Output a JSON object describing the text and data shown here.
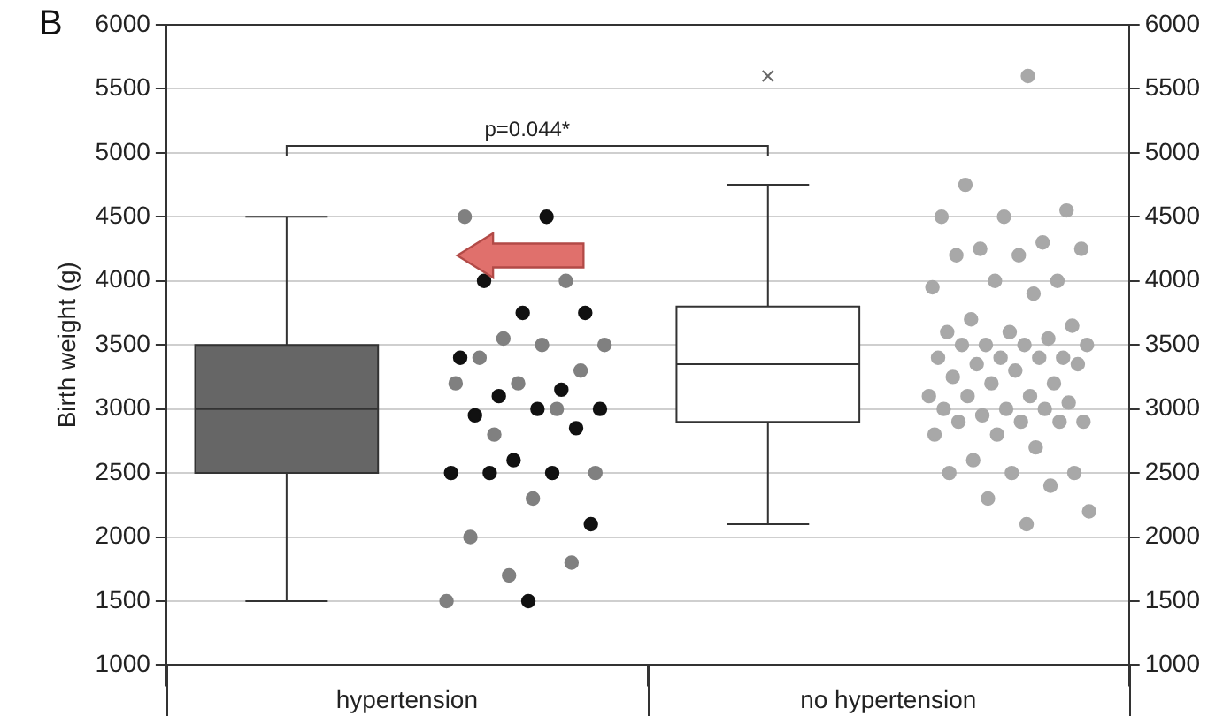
{
  "chart_data": {
    "type": "box",
    "title": "B",
    "ylabel": "Birth weight (g)",
    "categories": [
      "hypertension",
      "no hypertension"
    ],
    "boxes": [
      {
        "low": 1500,
        "q1": 2500,
        "median": 3000,
        "q3": 3500,
        "high": 4500
      },
      {
        "low": 2100,
        "q1": 2900,
        "median": 3350,
        "q3": 3800,
        "high": 4750,
        "outliers": [
          5600
        ]
      }
    ],
    "colors": [
      "#666666",
      "#ffffff"
    ],
    "series": [
      {
        "type": "scatter",
        "color": "#111111",
        "x": [
          "hypertension",
          "hypertension",
          "hypertension",
          "hypertension",
          "hypertension",
          "hypertension",
          "hypertension",
          "hypertension",
          "hypertension",
          "hypertension",
          "hypertension",
          "hypertension",
          "hypertension",
          "hypertension",
          "hypertension",
          "hypertension",
          "hypertension"
        ],
        "values": [
          4500,
          4000,
          3750,
          3750,
          3400,
          3150,
          3100,
          3000,
          3000,
          2950,
          2850,
          2600,
          2500,
          2500,
          2500,
          2100,
          1500
        ]
      },
      {
        "type": "scatter",
        "color": "#808080",
        "x": [
          "hypertension",
          "hypertension",
          "hypertension",
          "hypertension",
          "hypertension",
          "hypertension",
          "hypertension",
          "hypertension",
          "hypertension",
          "hypertension",
          "hypertension",
          "hypertension",
          "hypertension",
          "hypertension",
          "hypertension",
          "hypertension",
          "hypertension"
        ],
        "values": [
          4500,
          4000,
          3550,
          3500,
          3500,
          3400,
          3300,
          3200,
          3200,
          3000,
          2800,
          2500,
          2300,
          2000,
          1800,
          1700,
          1500
        ]
      },
      {
        "type": "scatter",
        "color": "#a8a8a8",
        "x": [
          "no hypertension",
          "no hypertension",
          "no hypertension",
          "no hypertension",
          "no hypertension",
          "no hypertension",
          "no hypertension",
          "no hypertension",
          "no hypertension",
          "no hypertension",
          "no hypertension",
          "no hypertension",
          "no hypertension",
          "no hypertension",
          "no hypertension",
          "no hypertension",
          "no hypertension",
          "no hypertension",
          "no hypertension",
          "no hypertension",
          "no hypertension",
          "no hypertension",
          "no hypertension",
          "no hypertension",
          "no hypertension",
          "no hypertension",
          "no hypertension",
          "no hypertension",
          "no hypertension",
          "no hypertension",
          "no hypertension",
          "no hypertension",
          "no hypertension",
          "no hypertension",
          "no hypertension",
          "no hypertension",
          "no hypertension",
          "no hypertension",
          "no hypertension",
          "no hypertension",
          "no hypertension",
          "no hypertension",
          "no hypertension",
          "no hypertension",
          "no hypertension",
          "no hypertension",
          "no hypertension",
          "no hypertension",
          "no hypertension",
          "no hypertension",
          "no hypertension",
          "no hypertension",
          "no hypertension",
          "no hypertension",
          "no hypertension",
          "no hypertension"
        ],
        "values": [
          5600,
          4750,
          4550,
          4500,
          4500,
          4300,
          4250,
          4250,
          4200,
          4200,
          4000,
          4000,
          3950,
          3900,
          3700,
          3650,
          3600,
          3600,
          3550,
          3500,
          3500,
          3500,
          3500,
          3400,
          3400,
          3400,
          3400,
          3350,
          3350,
          3300,
          3250,
          3200,
          3200,
          3100,
          3100,
          3100,
          3050,
          3000,
          3000,
          3000,
          2950,
          2900,
          2900,
          2900,
          2900,
          2800,
          2800,
          2700,
          2600,
          2500,
          2500,
          2500,
          2400,
          2300,
          2200,
          2100
        ]
      }
    ],
    "ylim": [
      1000,
      6000
    ],
    "yticks": [
      1000,
      1500,
      2000,
      2500,
      3000,
      3500,
      4000,
      4500,
      5000,
      5500,
      6000
    ],
    "y2lim": [
      1000,
      6000
    ],
    "y2ticks": [
      1000,
      1500,
      2000,
      2500,
      3000,
      3500,
      4000,
      4500,
      5000,
      5500,
      6000
    ],
    "grid": "y",
    "marker": "circle",
    "annotations": [
      "p=0.044*"
    ]
  }
}
